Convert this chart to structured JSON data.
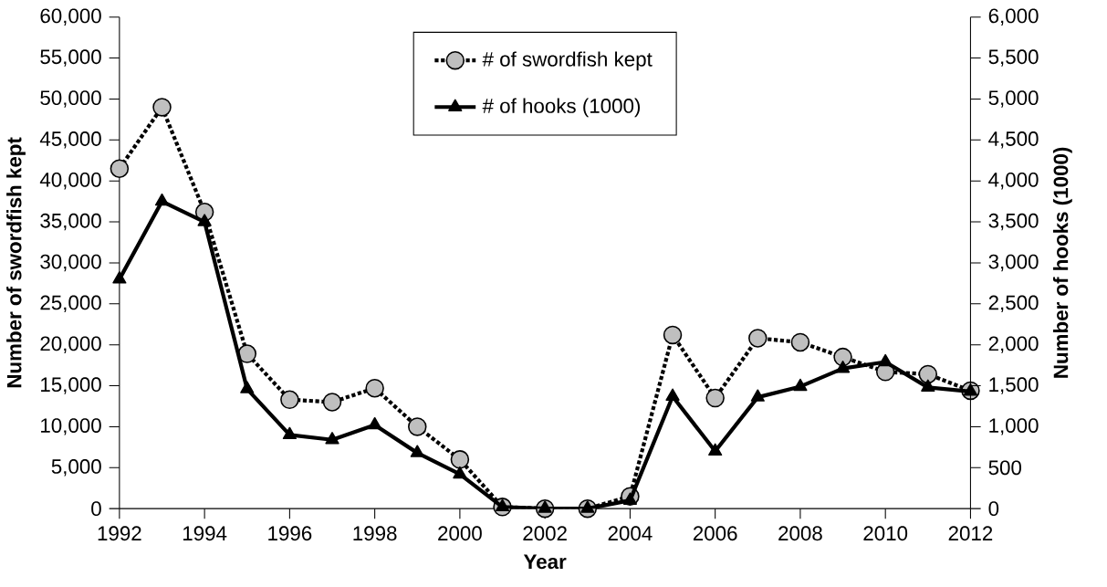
{
  "chart_data": {
    "type": "line",
    "xlabel": "Year",
    "ylabel": "Number of swordfish kept",
    "y2label": "Number of hooks (1000)",
    "x": [
      1992,
      1993,
      1994,
      1995,
      1996,
      1997,
      1998,
      1999,
      2000,
      2001,
      2002,
      2003,
      2004,
      2005,
      2006,
      2007,
      2008,
      2009,
      2010,
      2011,
      2012
    ],
    "series": [
      {
        "name": "# of swordfish kept",
        "color": "#000000",
        "marker": "circle",
        "line_style": "dotted",
        "values": [
          41500,
          49000,
          36200,
          18900,
          13300,
          13000,
          14700,
          10000,
          6000,
          200,
          0,
          0,
          1500,
          21200,
          13500,
          20800,
          20300,
          18500,
          16700,
          16400,
          14400
        ]
      },
      {
        "name": "# of hooks (1000)",
        "color": "#000000",
        "marker": "triangle",
        "line_style": "solid",
        "axis": "y2",
        "values": [
          2800,
          3750,
          3500,
          1460,
          900,
          840,
          1020,
          680,
          420,
          20,
          0,
          0,
          100,
          1370,
          700,
          1360,
          1490,
          1710,
          1790,
          1480,
          1430
        ]
      }
    ],
    "xlim": [
      1992,
      2012
    ],
    "xticks": [
      1992,
      1994,
      1996,
      1998,
      2000,
      2002,
      2004,
      2006,
      2008,
      2010,
      2012
    ],
    "ylim": [
      0,
      60000
    ],
    "yticks": [
      {
        "value": 0,
        "label": "0"
      },
      {
        "value": 5000,
        "label": "5,000"
      },
      {
        "value": 10000,
        "label": "10,000"
      },
      {
        "value": 15000,
        "label": "15,000"
      },
      {
        "value": 20000,
        "label": "20,000"
      },
      {
        "value": 25000,
        "label": "25,000"
      },
      {
        "value": 30000,
        "label": "30,000"
      },
      {
        "value": 35000,
        "label": "35,000"
      },
      {
        "value": 40000,
        "label": "40,000"
      },
      {
        "value": 45000,
        "label": "45,000"
      },
      {
        "value": 50000,
        "label": "50,000"
      },
      {
        "value": 55000,
        "label": "55,000"
      },
      {
        "value": 60000,
        "label": "60,000"
      }
    ],
    "y2lim": [
      0,
      6000
    ],
    "y2ticks": [
      {
        "value": 0,
        "label": "0"
      },
      {
        "value": 500,
        "label": "500"
      },
      {
        "value": 1000,
        "label": "1,000"
      },
      {
        "value": 1500,
        "label": "1,500"
      },
      {
        "value": 2000,
        "label": "2,000"
      },
      {
        "value": 2500,
        "label": "2,500"
      },
      {
        "value": 3000,
        "label": "3,000"
      },
      {
        "value": 3500,
        "label": "3,500"
      },
      {
        "value": 4000,
        "label": "4,000"
      },
      {
        "value": 4500,
        "label": "4,500"
      },
      {
        "value": 5000,
        "label": "5,000"
      },
      {
        "value": 5500,
        "label": "5,500"
      },
      {
        "value": 6000,
        "label": "6,000"
      }
    ],
    "legend": "top"
  }
}
